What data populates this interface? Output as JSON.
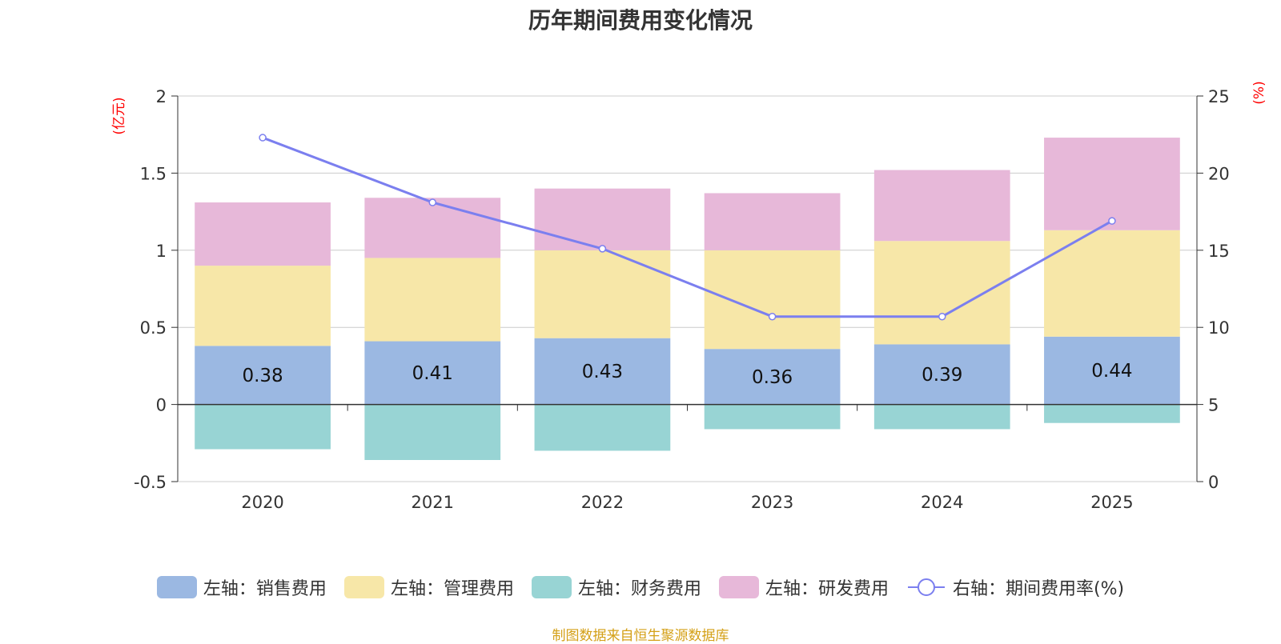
{
  "title": "历年期间费用变化情况",
  "source": "制图数据来自恒生聚源数据库",
  "chart_data": {
    "type": "bar",
    "stacked": true,
    "categories": [
      "2020",
      "2021",
      "2022",
      "2023",
      "2024",
      "2025"
    ],
    "left_axis": {
      "unit": "(亿元)",
      "ylim": [
        -0.5,
        2
      ],
      "ticks": [
        -0.5,
        0,
        0.5,
        1,
        1.5,
        2
      ],
      "tick_labels": [
        "-0.5",
        "0",
        "0.5",
        "1",
        "1.5",
        "2"
      ]
    },
    "right_axis": {
      "unit": "(%)",
      "ylim": [
        0,
        25
      ],
      "ticks": [
        0,
        5,
        10,
        15,
        20,
        25
      ],
      "tick_labels": [
        "0",
        "5",
        "10",
        "15",
        "20",
        "25"
      ]
    },
    "series": [
      {
        "name": "左轴：销售费用",
        "axis": "left",
        "color": "#9bb8e2",
        "values": [
          0.38,
          0.41,
          0.43,
          0.36,
          0.39,
          0.44
        ],
        "labels": [
          "0.38",
          "0.41",
          "0.43",
          "0.36",
          "0.39",
          "0.44"
        ]
      },
      {
        "name": "左轴：管理费用",
        "axis": "left",
        "color": "#f7e7a8",
        "values": [
          0.52,
          0.54,
          0.57,
          0.64,
          0.67,
          0.69
        ]
      },
      {
        "name": "左轴：财务费用",
        "axis": "left",
        "color": "#98d4d4",
        "values": [
          -0.29,
          -0.36,
          -0.3,
          -0.16,
          -0.16,
          -0.12
        ]
      },
      {
        "name": "左轴：研发费用",
        "axis": "left",
        "color": "#e7b8d9",
        "values": [
          0.41,
          0.39,
          0.4,
          0.37,
          0.46,
          0.6
        ]
      },
      {
        "name": "右轴：期间费用率(%)",
        "axis": "right",
        "type": "line",
        "color": "#7b7fef",
        "values": [
          22.3,
          18.1,
          15.1,
          10.7,
          10.7,
          16.9
        ]
      }
    ]
  }
}
